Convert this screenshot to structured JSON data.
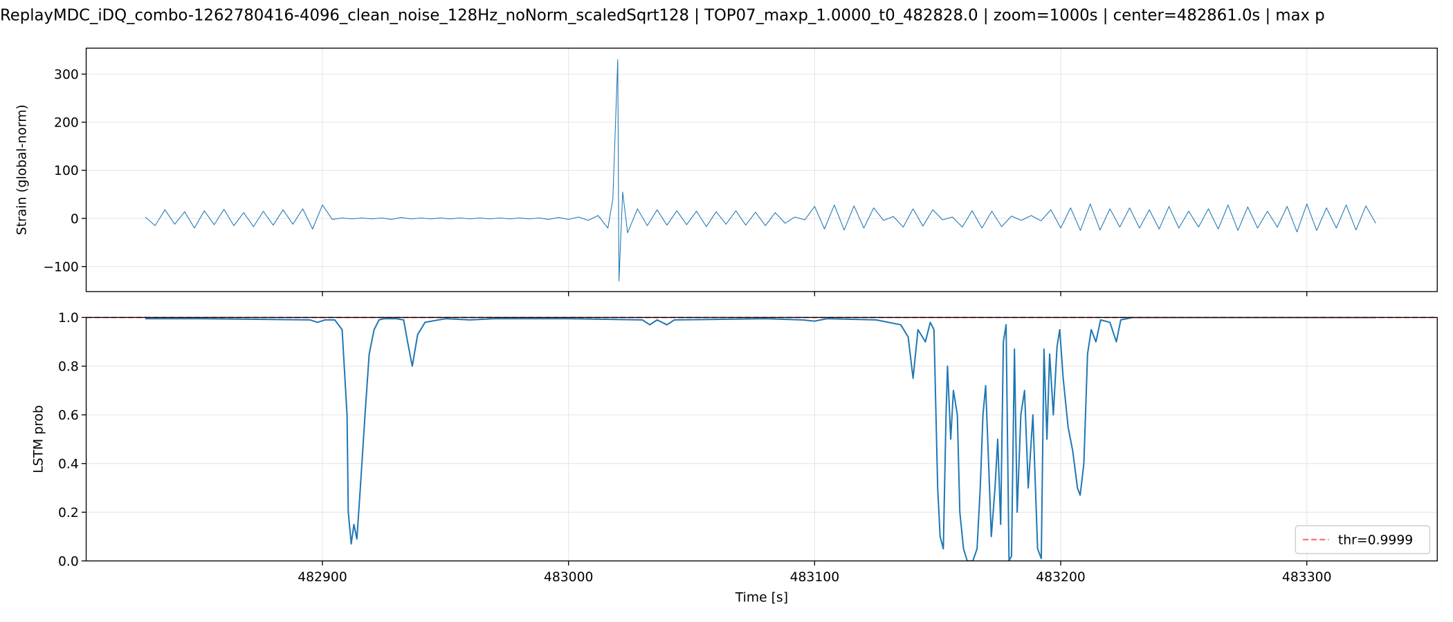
{
  "chart_data": [
    {
      "type": "line",
      "title": "ReplayMDC_iDQ_combo-1262780416-4096_clean_noise_128Hz_noNorm_scaledSqrt128 | TOP07_maxp_1.0000_t0_482828.0 | zoom=1000s | center=482861.0s | max p",
      "ylabel": "Strain (global-norm)",
      "color": "#1f77b4",
      "grid": true,
      "show_xtick_labels": false,
      "xlim": [
        482804,
        483353
      ],
      "xticks": [
        482900,
        483000,
        483100,
        483200,
        483300
      ],
      "ylim": [
        -152,
        354
      ],
      "yticks": [
        {
          "value": -100,
          "label": "−100"
        },
        0,
        100,
        200,
        300
      ],
      "x": [
        482828,
        482832,
        482836,
        482840,
        482844,
        482848,
        482852,
        482856,
        482860,
        482864,
        482868,
        482872,
        482876,
        482880,
        482884,
        482888,
        482892,
        482896,
        482900,
        482904,
        482908,
        482912,
        482916,
        482920,
        482924,
        482928,
        482932,
        482936,
        482940,
        482944,
        482948,
        482952,
        482956,
        482960,
        482964,
        482968,
        482972,
        482976,
        482980,
        482984,
        482988,
        482992,
        482996,
        483000,
        483004,
        483008,
        483012,
        483016,
        483018,
        483020,
        483020.5,
        483022,
        483024,
        483028,
        483032,
        483036,
        483040,
        483044,
        483048,
        483052,
        483056,
        483060,
        483064,
        483068,
        483072,
        483076,
        483080,
        483084,
        483088,
        483092,
        483096,
        483100,
        483104,
        483108,
        483112,
        483116,
        483120,
        483124,
        483128,
        483132,
        483136,
        483140,
        483144,
        483148,
        483152,
        483156,
        483160,
        483164,
        483168,
        483172,
        483176,
        483180,
        483184,
        483188,
        483192,
        483196,
        483200,
        483204,
        483208,
        483212,
        483216,
        483220,
        483224,
        483228,
        483232,
        483236,
        483240,
        483244,
        483248,
        483252,
        483256,
        483260,
        483264,
        483268,
        483272,
        483276,
        483280,
        483284,
        483288,
        483292,
        483296,
        483300,
        483304,
        483308,
        483312,
        483316,
        483320,
        483324,
        483328
      ],
      "values": [
        3,
        -15,
        18,
        -12,
        14,
        -20,
        16,
        -13,
        19,
        -15,
        12,
        -17,
        15,
        -14,
        18,
        -12,
        20,
        -22,
        28,
        -2,
        1,
        -1,
        1,
        -1,
        1,
        -2,
        2,
        -1,
        1,
        -1,
        1,
        -1,
        1,
        -1,
        1,
        -1,
        1,
        -1,
        1,
        -1,
        1,
        -2,
        2,
        -2,
        3,
        -4,
        6,
        -20,
        40,
        330,
        -130,
        55,
        -30,
        20,
        -15,
        18,
        -14,
        16,
        -13,
        15,
        -17,
        14,
        -12,
        16,
        -14,
        13,
        -15,
        12,
        -10,
        3,
        -3,
        25,
        -22,
        28,
        -24,
        26,
        -20,
        22,
        -4,
        4,
        -18,
        20,
        -16,
        18,
        -3,
        3,
        -18,
        16,
        -20,
        15,
        -17,
        5,
        -4,
        6,
        -5,
        18,
        -20,
        22,
        -25,
        30,
        -24,
        20,
        -18,
        22,
        -20,
        18,
        -22,
        25,
        -20,
        15,
        -18,
        20,
        -22,
        28,
        -25,
        24,
        -20,
        15,
        -18,
        25,
        -28,
        30,
        -25,
        22,
        -20,
        28,
        -24,
        26,
        -10
      ]
    },
    {
      "type": "line",
      "xlabel": "Time [s]",
      "ylabel": "LSTM prob",
      "color": "#1f77b4",
      "grid": true,
      "show_xtick_labels": true,
      "legend": "lower right",
      "xlim": [
        482804,
        483353
      ],
      "xticks": [
        482900,
        483000,
        483100,
        483200,
        483300
      ],
      "ylim": [
        0,
        1
      ],
      "yticks": [
        {
          "value": 0,
          "label": "0.0"
        },
        0.2,
        0.4,
        0.6,
        0.8,
        {
          "value": 1,
          "label": "1.0"
        }
      ],
      "hlines": [
        {
          "name": "thr=0.9999",
          "value": 0.9999,
          "color": "#f44",
          "dashed": true
        }
      ],
      "x": [
        482828,
        482850,
        482895,
        482898,
        482901,
        482905,
        482908,
        482910,
        482910.5,
        482911.7,
        482912.8,
        482914,
        482915.4,
        482917.3,
        482919,
        482921,
        482923,
        482925,
        482930,
        482933,
        482934.6,
        482936.5,
        482938.7,
        482941.7,
        482950,
        482960,
        482970,
        483000,
        483030,
        483033,
        483036,
        483040,
        483043,
        483080,
        483095,
        483100,
        483105,
        483125,
        483130,
        483135,
        483138,
        483140,
        483142,
        483145,
        483147,
        483148.5,
        483150,
        483151,
        483152.3,
        483153.4,
        483154,
        483155.3,
        483156.4,
        483158,
        483159,
        483160.5,
        483162,
        483164.3,
        483166,
        483167.3,
        483168.4,
        483169.5,
        483170.7,
        483171.8,
        483173.3,
        483174.4,
        483175.6,
        483176.7,
        483177.8,
        483179,
        483180,
        483181.2,
        483182.3,
        483183.8,
        483185.3,
        483186.8,
        483188.7,
        483190.6,
        483192.1,
        483193.2,
        483194.4,
        483195.5,
        483197,
        483198.5,
        483199.6,
        483201,
        483203,
        483204.9,
        483206.8,
        483207.9,
        483209.4,
        483210.9,
        483212.4,
        483214.3,
        483216.2,
        483220,
        483222.6,
        483224.4,
        483229.3,
        483240,
        483328
      ],
      "values": [
        0.995,
        0.995,
        0.99,
        0.98,
        0.99,
        0.99,
        0.95,
        0.6,
        0.2,
        0.07,
        0.15,
        0.09,
        0.3,
        0.6,
        0.85,
        0.95,
        0.99,
        0.995,
        0.995,
        0.99,
        0.9,
        0.8,
        0.93,
        0.98,
        0.995,
        0.99,
        0.995,
        0.995,
        0.99,
        0.97,
        0.99,
        0.97,
        0.99,
        0.995,
        0.99,
        0.985,
        0.995,
        0.99,
        0.98,
        0.97,
        0.92,
        0.75,
        0.95,
        0.9,
        0.98,
        0.95,
        0.3,
        0.1,
        0.05,
        0.6,
        0.8,
        0.5,
        0.7,
        0.6,
        0.2,
        0.05,
        0,
        0,
        0.05,
        0.3,
        0.6,
        0.72,
        0.4,
        0.1,
        0.3,
        0.5,
        0.15,
        0.9,
        0.97,
        0,
        0.02,
        0.87,
        0.2,
        0.6,
        0.7,
        0.3,
        0.6,
        0.05,
        0.01,
        0.87,
        0.5,
        0.85,
        0.6,
        0.88,
        0.95,
        0.75,
        0.55,
        0.45,
        0.3,
        0.27,
        0.4,
        0.85,
        0.95,
        0.9,
        0.99,
        0.98,
        0.9,
        0.99,
        1,
        1,
        1
      ]
    }
  ]
}
